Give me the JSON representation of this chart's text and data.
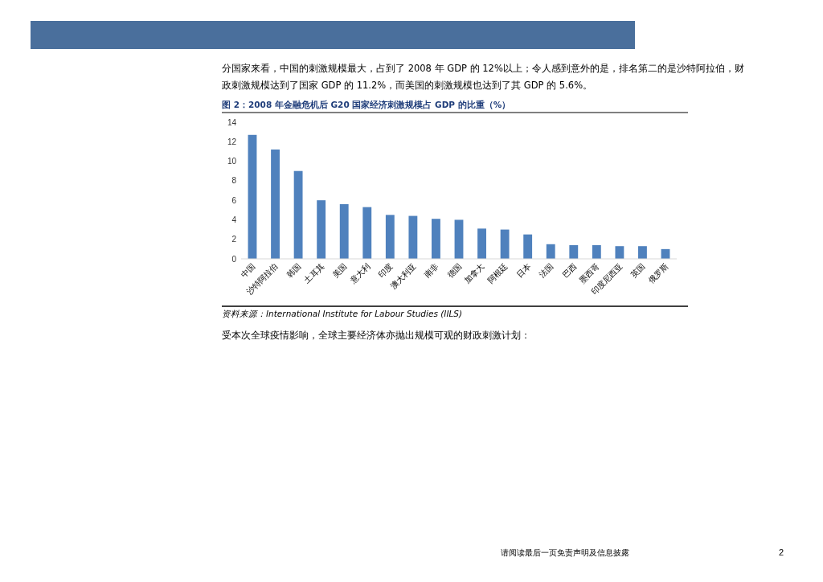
{
  "chart_data": {
    "type": "bar",
    "title": "图 2：2008 年金融危机后 G20 国家经济刺激规模占 GDP 的比重（%）",
    "categories": [
      "中国",
      "沙特阿拉伯",
      "韩国",
      "土耳其",
      "美国",
      "意大利",
      "印度",
      "澳大利亚",
      "南非",
      "德国",
      "加拿大",
      "阿根廷",
      "日本",
      "法国",
      "巴西",
      "墨西哥",
      "印度尼西亚",
      "英国",
      "俄罗斯"
    ],
    "values": [
      12.7,
      11.2,
      9.0,
      6.0,
      5.6,
      5.3,
      4.5,
      4.4,
      4.1,
      4.0,
      3.1,
      3.0,
      2.5,
      1.5,
      1.4,
      1.4,
      1.3,
      1.3,
      1.0
    ],
    "color": "#4f81bd",
    "ylim": [
      0,
      14
    ],
    "yticks": [
      0,
      2,
      4,
      6,
      8,
      10,
      12,
      14
    ],
    "grid": false,
    "annotations": [
      "分国家来看，中国的刺激规模最大，占到了 2008 年 GDP 的 12%以上；令人感到意外的是，排名第二的是沙特阿拉伯，财政刺激规模达到了国家 GDP 的 11.2%，而美国的刺激规模也达到了其 GDP 的 5.6%。",
      "资料来源：International Institute for Labour Studies (IILS)",
      "受本次全球疫情影响，全球主要经济体亦抛出规模可观的财政刺激计划：",
      "请阅读最后一页免责声明及信息披露",
      "2"
    ]
  }
}
